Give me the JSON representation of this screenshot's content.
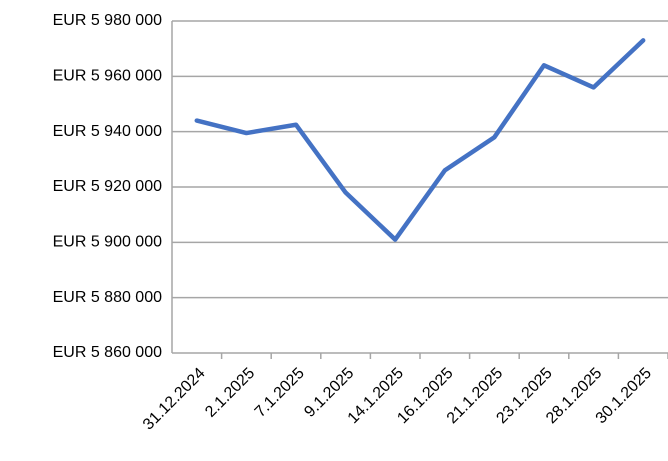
{
  "chart_data": {
    "type": "line",
    "categories": [
      "31.12.2024",
      "2.1.2025",
      "7.1.2025",
      "9.1.2025",
      "14.1.2025",
      "16.1.2025",
      "21.1.2025",
      "23.1.2025",
      "28.1.2025",
      "30.1.2025"
    ],
    "series": [
      {
        "color": "#4472c4",
        "values": [
          5944000,
          5939500,
          5942500,
          5918000,
          5901000,
          5926000,
          5938000,
          5964000,
          5956000,
          5973000
        ]
      }
    ],
    "ylim": [
      5860000,
      5980000
    ],
    "yticks": [
      {
        "value": 5860000,
        "label": "EUR 5 860 000"
      },
      {
        "value": 5880000,
        "label": "EUR 5 880 000"
      },
      {
        "value": 5900000,
        "label": "EUR 5 900 000"
      },
      {
        "value": 5920000,
        "label": "EUR 5 920 000"
      },
      {
        "value": 5940000,
        "label": "EUR 5 940 000"
      },
      {
        "value": 5960000,
        "label": "EUR 5 960 000"
      },
      {
        "value": 5980000,
        "label": "EUR 5 980 000"
      }
    ],
    "grid": true
  }
}
